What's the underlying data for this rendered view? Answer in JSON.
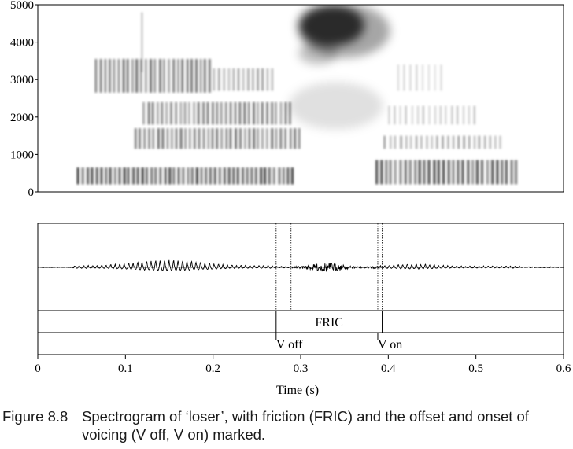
{
  "chart_data": {
    "type": "spectrogram",
    "spectrogram": {
      "ylim": [
        0,
        5000
      ],
      "xlim": [
        0,
        0.6
      ],
      "yticks": [
        0,
        1000,
        2000,
        3000,
        4000,
        5000
      ],
      "ytick_labels": [
        "0",
        "1000",
        "2000",
        "3000",
        "4000",
        "5000"
      ]
    },
    "time_axis": {
      "xlabel": "Time (s)",
      "xlim": [
        0,
        0.6
      ],
      "xticks": [
        0,
        0.1,
        0.2,
        0.3,
        0.4,
        0.5,
        0.6
      ],
      "xtick_labels": [
        "0",
        "0.1",
        "0.2",
        "0.3",
        "0.4",
        "0.5",
        "0.6"
      ]
    },
    "annotations": {
      "interval_tier": [
        {
          "label": "FRIC",
          "start": 0.272,
          "end": 0.393
        }
      ],
      "point_tier": [
        {
          "label": "V off",
          "time": 0.272
        },
        {
          "label": "V on",
          "time": 0.388
        }
      ],
      "waveform_markers": [
        0.272,
        0.289,
        0.388,
        0.393
      ]
    }
  },
  "caption": {
    "number": "Figure 8.8",
    "text": "Spectrogram of ‘loser’, with friction (FRIC) and the offset and onset of voicing (V off, V on) marked."
  }
}
